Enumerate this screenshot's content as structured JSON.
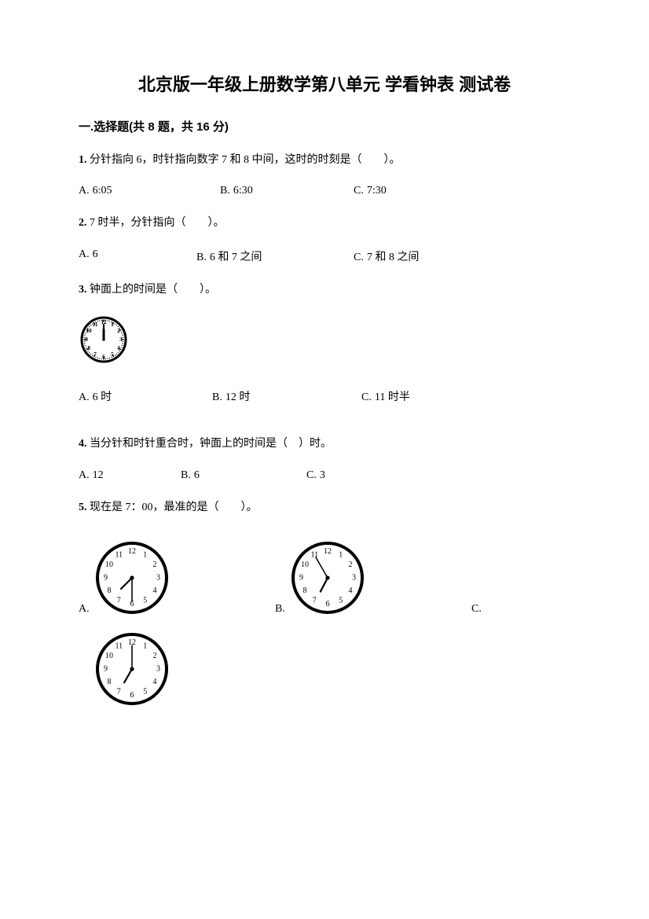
{
  "title": "北京版一年级上册数学第八单元 学看钟表 测试卷",
  "section": "一.选择题(共 8 题，共 16 分)",
  "q1": {
    "num": "1.",
    "text": "分针指向 6，时针指向数字 7 和 8 中间，这时的时刻是（　　）。",
    "opts": {
      "A": "6:05",
      "B": "6:30",
      "C": "7:30"
    }
  },
  "q2": {
    "num": "2.",
    "text": "7 时半，分针指向（　　）。",
    "opts": {
      "A": "6",
      "B": "6 和 7 之间",
      "C": "7 和 8 之间"
    }
  },
  "q3": {
    "num": "3.",
    "text": "钟面上的时间是（　　）。",
    "opts": {
      "A": "6 时",
      "B": "12 时",
      "C": "11 时半"
    },
    "clock": {
      "hour": 12,
      "minute": 0,
      "style": "bold"
    }
  },
  "q4": {
    "num": "4.",
    "text": "当分针和时针重合时，钟面上的时间是（　）时。",
    "opts": {
      "A": "12",
      "B": "6",
      "C": "3"
    }
  },
  "q5": {
    "num": "5.",
    "text": "现在是 7：00，最准的是（　　）。",
    "opts": {
      "A": "",
      "B": "",
      "C": ""
    },
    "clocks": {
      "A": {
        "hour": 7,
        "minute": 30
      },
      "B": {
        "hour": 6,
        "minute": 55
      },
      "C": {
        "hour": 7,
        "minute": 0
      }
    }
  },
  "optionLabels": {
    "A": "A.",
    "B": "B.",
    "C": "C."
  },
  "colors": {
    "text": "#000000",
    "bg": "#ffffff",
    "clockStroke": "#000000"
  },
  "clockStyle": {
    "smallRadius": 28,
    "medRadius": 44,
    "rimWidth": 3,
    "numberFontSize": 7,
    "medNumberFontSize": 10
  }
}
